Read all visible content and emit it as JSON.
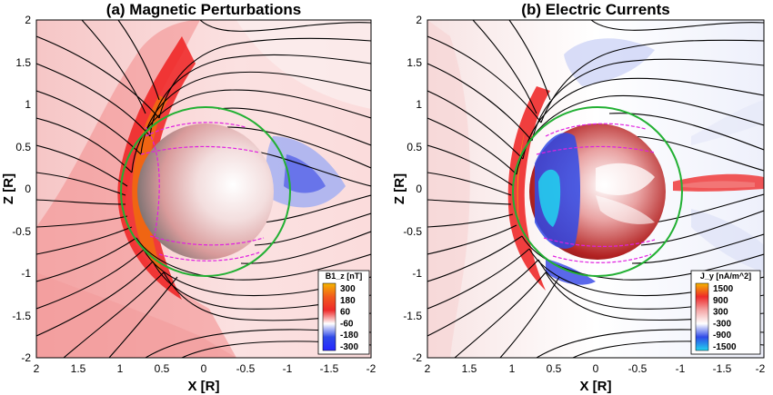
{
  "panels": [
    {
      "id": "a",
      "title": "(a) Magnetic Perturbations",
      "xlabel": "X [R]",
      "ylabel": "Z [R]",
      "x_ticks": [
        "2",
        "1.5",
        "1",
        "0.5",
        "0",
        "-0.5",
        "-1",
        "-1.5",
        "-2"
      ],
      "y_ticks": [
        "2",
        "1.5",
        "1",
        "0.5",
        "0",
        "-0.5",
        "-1",
        "-1.5",
        "-2"
      ],
      "x_range": [
        2,
        -2
      ],
      "y_range": [
        -2,
        2
      ],
      "legend": {
        "title": "B1_z [nT]",
        "levels": [
          "300",
          "180",
          "60",
          "-60",
          "-180",
          "-300"
        ],
        "colors": [
          "#f5b400",
          "#f25a1e",
          "#ee2a2a",
          "#ffffff",
          "#2f4ae8",
          "#2525ff"
        ]
      }
    },
    {
      "id": "b",
      "title": "(b) Electric Currents",
      "xlabel": "X [R]",
      "ylabel": "Z [R]",
      "x_ticks": [
        "2",
        "1.5",
        "1",
        "0.5",
        "0",
        "-0.5",
        "-1",
        "-1.5",
        "-2"
      ],
      "y_ticks": [
        "2",
        "1.5",
        "1",
        "0.5",
        "0",
        "-0.5",
        "-1",
        "-1.5",
        "-2"
      ],
      "x_range": [
        2,
        -2
      ],
      "y_range": [
        -2,
        2
      ],
      "legend": {
        "title": "J_y [nA/m^2]",
        "levels": [
          "1500",
          "900",
          "300",
          "-300",
          "-900",
          "-1500"
        ],
        "colors": [
          "#f5b400",
          "#ee2a2a",
          "#f4a6a6",
          "#ffffff",
          "#2f4ae8",
          "#22d3ee"
        ]
      }
    }
  ],
  "colors": {
    "streamline": "#000000",
    "green_circle": "#22b033",
    "magenta_lines": "#e020e0"
  }
}
